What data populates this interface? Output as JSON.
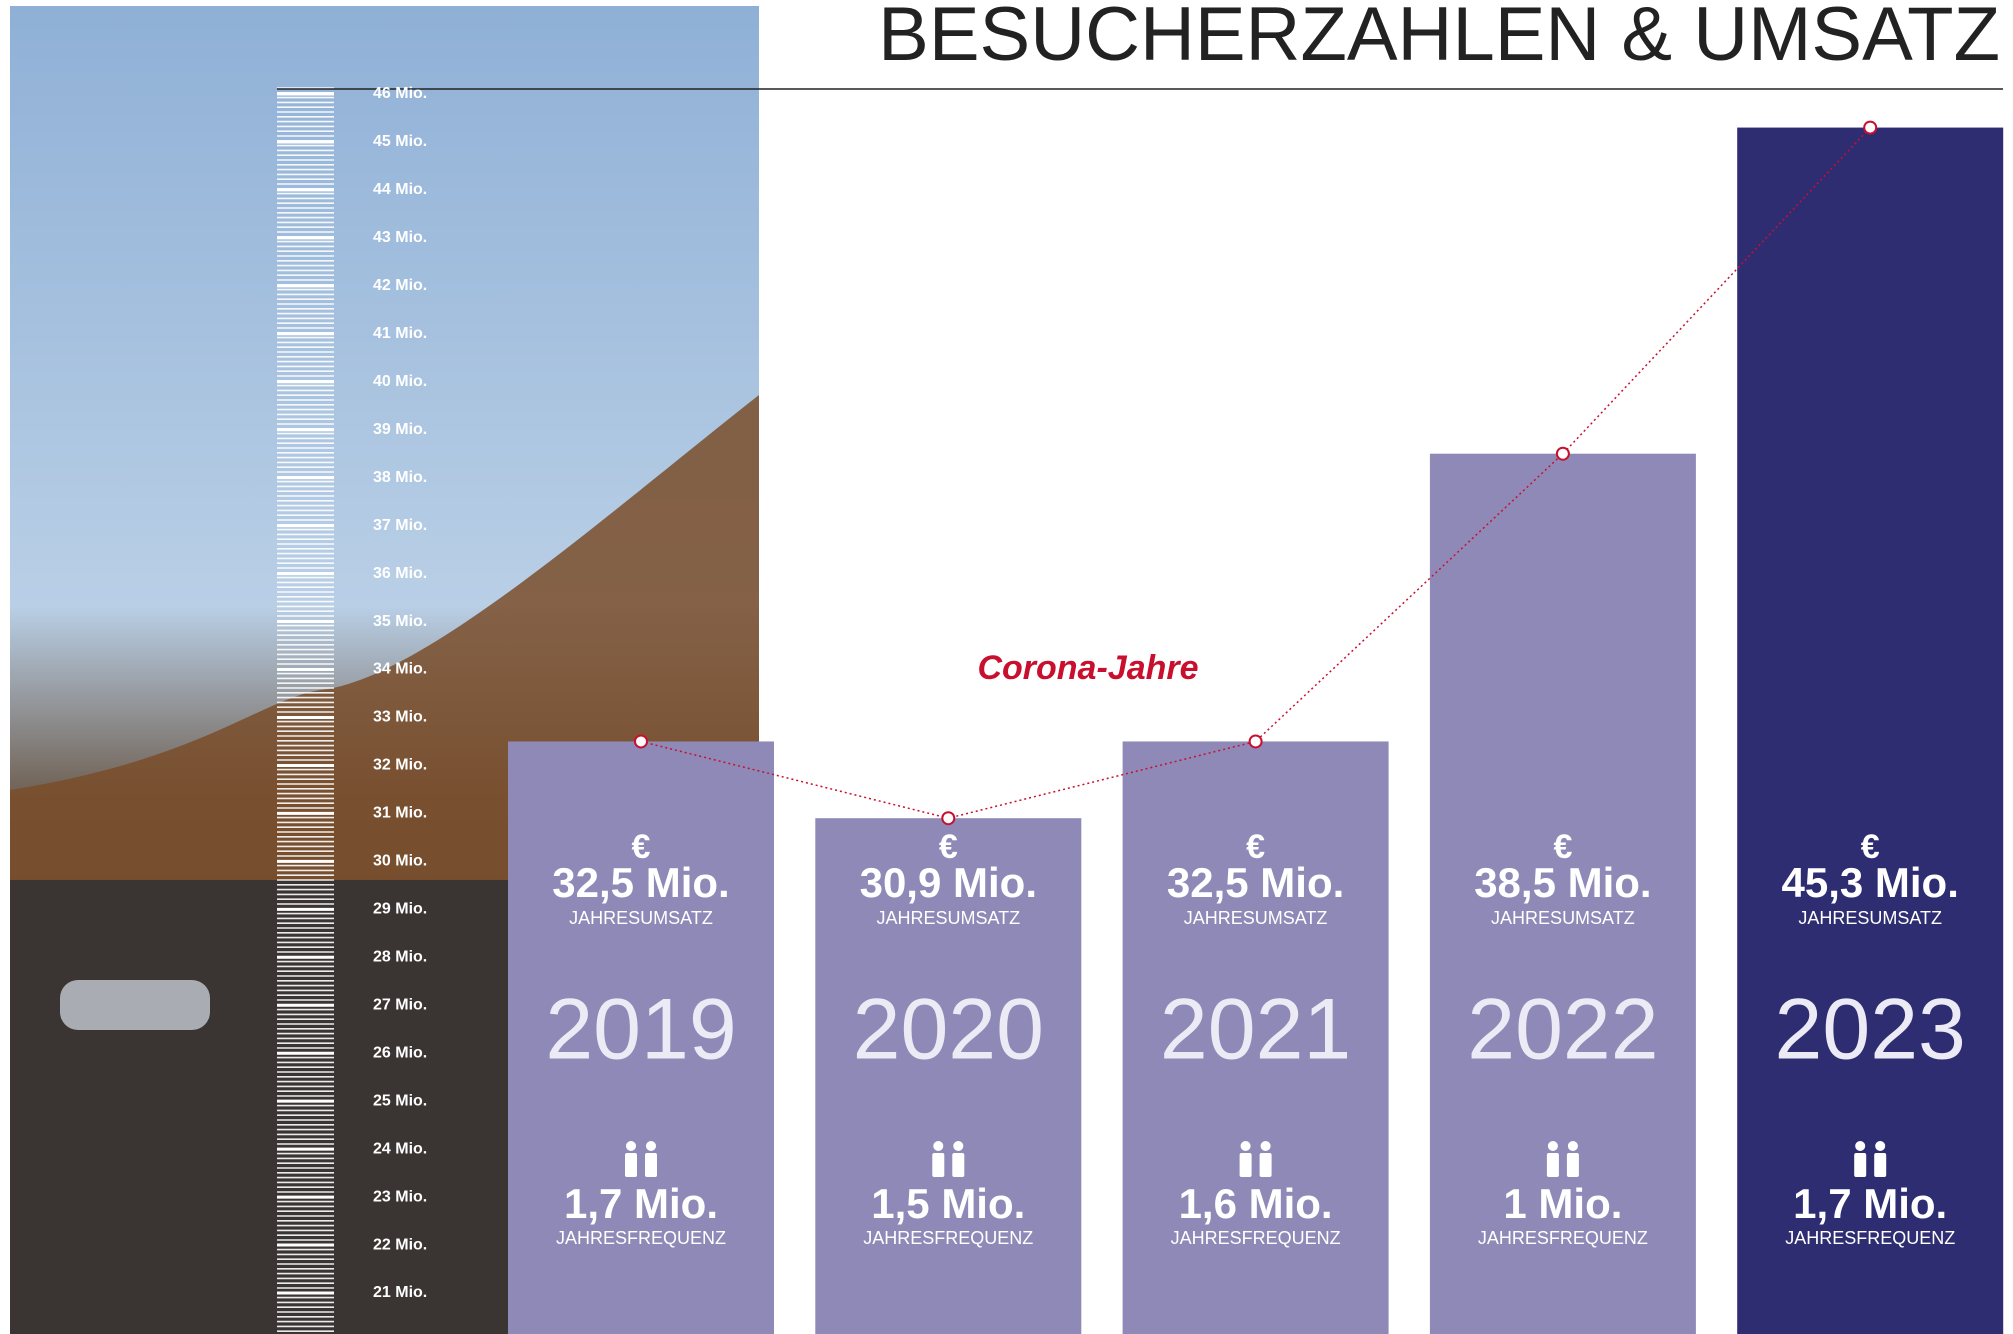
{
  "chart_data": {
    "type": "bar",
    "title": "BESUCHERZAHLEN & UMSATZ",
    "annotation": "Corona-Jahre",
    "categories": [
      "2019",
      "2020",
      "2021",
      "2022",
      "2023"
    ],
    "values": [
      32.5,
      30.9,
      32.5,
      38.5,
      45.3
    ],
    "value_labels": [
      "32,5 Mio.",
      "30,9 Mio.",
      "32,5 Mio.",
      "38,5 Mio.",
      "45,3 Mio."
    ],
    "currency_symbol": "€",
    "value_caption": "JAHRESUMSATZ",
    "frequency_labels": [
      "1,7 Mio.",
      "1,5 Mio.",
      "1,6 Mio.",
      "1 Mio.",
      "1,7 Mio."
    ],
    "frequency_caption": "JAHRESFREQUENZ",
    "colors": [
      "#8f89b8",
      "#8f89b8",
      "#8f89b8",
      "#8f89b8",
      "#2e2d72"
    ],
    "line_color": "#c8102e",
    "ylim": [
      21,
      46
    ],
    "yticks": [
      {
        "value": 21,
        "label": "21 Mio."
      },
      {
        "value": 22,
        "label": "22 Mio."
      },
      {
        "value": 23,
        "label": "23 Mio."
      },
      {
        "value": 24,
        "label": "24 Mio."
      },
      {
        "value": 25,
        "label": "25 Mio."
      },
      {
        "value": 26,
        "label": "26 Mio."
      },
      {
        "value": 27,
        "label": "27 Mio."
      },
      {
        "value": 28,
        "label": "28 Mio."
      },
      {
        "value": 29,
        "label": "29 Mio."
      },
      {
        "value": 30,
        "label": "30 Mio."
      },
      {
        "value": 31,
        "label": "31 Mio."
      },
      {
        "value": 32,
        "label": "32 Mio."
      },
      {
        "value": 33,
        "label": "33 Mio."
      },
      {
        "value": 34,
        "label": "34 Mio."
      },
      {
        "value": 35,
        "label": "35 Mio."
      },
      {
        "value": 36,
        "label": "36 Mio."
      },
      {
        "value": 37,
        "label": "37 Mio."
      },
      {
        "value": 38,
        "label": "38 Mio."
      },
      {
        "value": 39,
        "label": "39 Mio."
      },
      {
        "value": 40,
        "label": "40 Mio."
      },
      {
        "value": 41,
        "label": "41 Mio."
      },
      {
        "value": 42,
        "label": "42 Mio."
      },
      {
        "value": 43,
        "label": "43 Mio."
      },
      {
        "value": 44,
        "label": "44 Mio."
      },
      {
        "value": 45,
        "label": "45 Mio."
      },
      {
        "value": 46,
        "label": "46 Mio."
      }
    ]
  }
}
